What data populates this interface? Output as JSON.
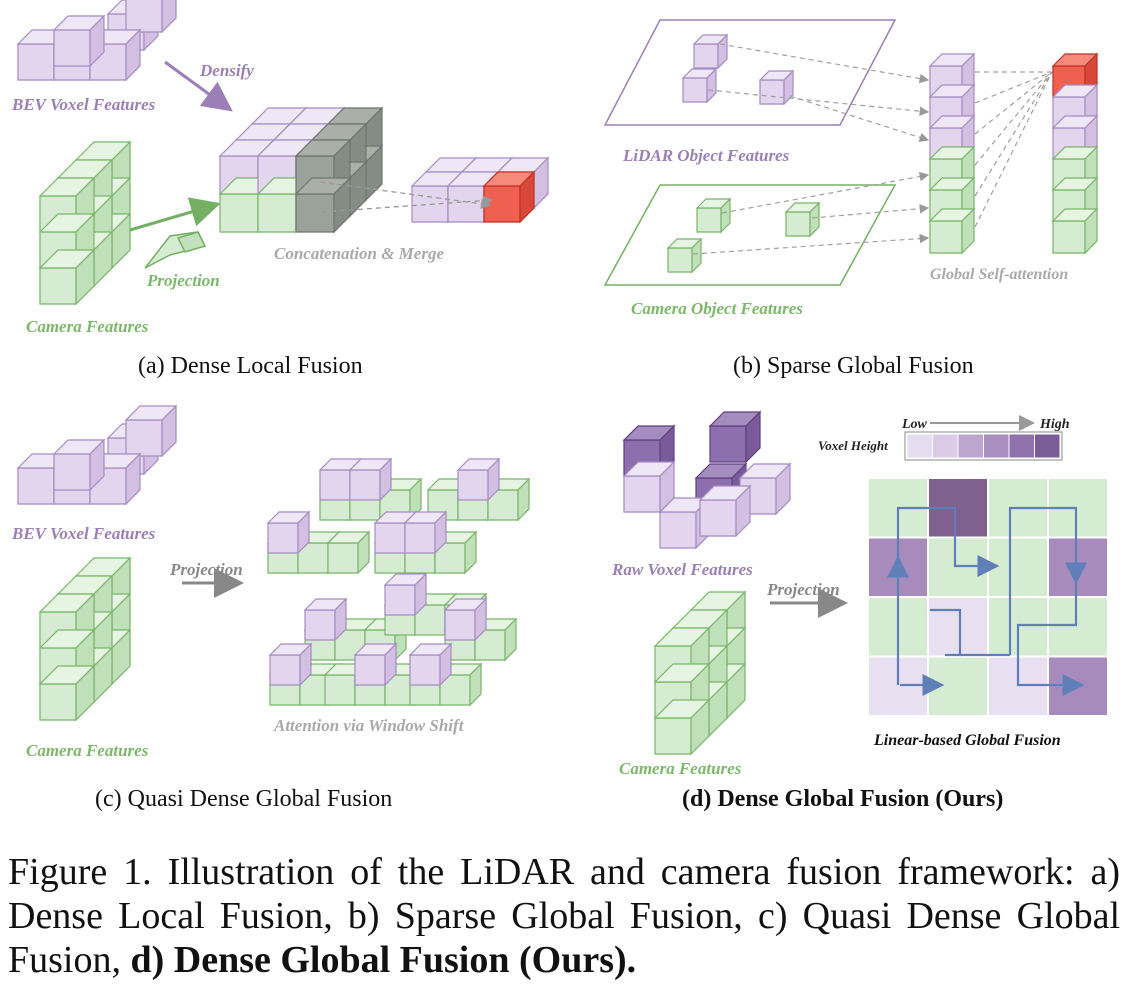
{
  "panel_a": {
    "bev_voxel_label": "BEV Voxel Features",
    "densify_label": "Densify",
    "camera_label": "Camera Features",
    "projection_label": "Projection",
    "concat_label": "Concatenation & Merge",
    "caption": "(a) Dense Local Fusion"
  },
  "panel_b": {
    "lidar_label": "LiDAR Object Features",
    "camera_label": "Camera Object Features",
    "attention_label": "Global Self-attention",
    "caption": "(b) Sparse Global Fusion"
  },
  "panel_c": {
    "bev_voxel_label": "BEV Voxel Features",
    "camera_label": "Camera Features",
    "projection_label": "Projection",
    "attention_label": "Attention via Window Shift",
    "caption": "(c) Quasi Dense Global Fusion"
  },
  "panel_d": {
    "raw_voxel_label": "Raw Voxel Features",
    "camera_label": "Camera Features",
    "projection_label": "Projection",
    "legend_low": "Low",
    "legend_high": "High",
    "legend_title": "Voxel Height",
    "fusion_label": "Linear-based Global Fusion",
    "caption": "(d) Dense Global Fusion (Ours)"
  },
  "figure_caption": {
    "prefix": "Figure 1. Illustration of the LiDAR and camera fusion framework: a) Dense Local Fusion, b) Sparse Global Fusion, c) Quasi Dense Global Fusion, ",
    "bold": "d) Dense Global Fusion (Ours)."
  },
  "colors": {
    "purple_label": "#9b7fb6",
    "green_label": "#7cb86a",
    "gray_label": "#a9a9a9",
    "purple_cube": "#e3d5ee",
    "green_cube": "#d6ecd2",
    "red_cube": "#f06050",
    "arrow_blue": "#5f7fb8"
  }
}
